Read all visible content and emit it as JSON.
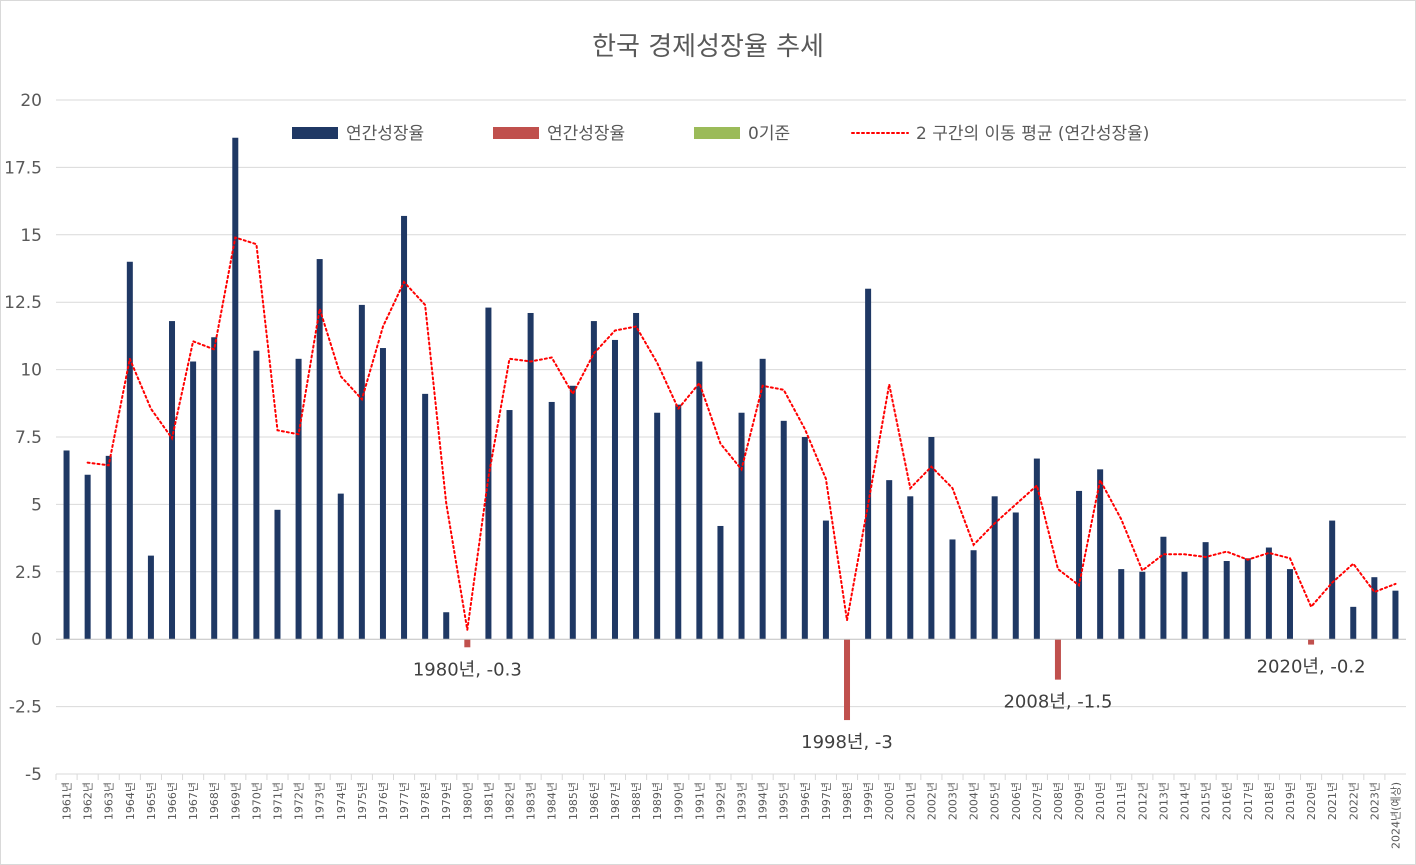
{
  "chart_data": {
    "type": "bar",
    "title": "한국 경제성장율 추세",
    "xlabel": "",
    "ylabel": "",
    "ylim": [
      -5,
      20
    ],
    "yticks": [
      "-5",
      "-2.5",
      "0",
      "2.5",
      "5",
      "7.5",
      "10",
      "12.5",
      "15",
      "17.5",
      "20"
    ],
    "ytick_values": [
      -5,
      -2.5,
      0,
      2.5,
      5,
      7.5,
      10,
      12.5,
      15,
      17.5,
      20
    ],
    "grid": true,
    "legend_position": "top",
    "categories": [
      "1961년",
      "1962년",
      "1963년",
      "1964년",
      "1965년",
      "1966년",
      "1967년",
      "1968년",
      "1969년",
      "1970년",
      "1971년",
      "1972년",
      "1973년",
      "1974년",
      "1975년",
      "1976년",
      "1977년",
      "1978년",
      "1979년",
      "1980년",
      "1981년",
      "1982년",
      "1983년",
      "1984년",
      "1985년",
      "1986년",
      "1987년",
      "1988년",
      "1989년",
      "1990년",
      "1991년",
      "1992년",
      "1993년",
      "1994년",
      "1995년",
      "1996년",
      "1997년",
      "1998년",
      "1999년",
      "2000년",
      "2001년",
      "2002년",
      "2003년",
      "2004년",
      "2005년",
      "2006년",
      "2007년",
      "2008년",
      "2009년",
      "2010년",
      "2011년",
      "2012년",
      "2013년",
      "2014년",
      "2015년",
      "2016년",
      "2017년",
      "2018년",
      "2019년",
      "2020년",
      "2021년",
      "2022년",
      "2023년",
      "2024년(예상)"
    ],
    "values": [
      7.0,
      6.1,
      6.8,
      14.0,
      3.1,
      11.8,
      10.3,
      11.2,
      18.6,
      10.7,
      4.8,
      10.4,
      14.1,
      5.4,
      12.4,
      10.8,
      15.7,
      9.1,
      1.0,
      -0.3,
      12.3,
      8.5,
      12.1,
      8.8,
      9.4,
      11.8,
      11.1,
      12.1,
      8.4,
      8.7,
      10.3,
      4.2,
      8.4,
      10.4,
      8.1,
      7.5,
      4.4,
      -3.0,
      13.0,
      5.9,
      5.3,
      7.5,
      3.7,
      3.3,
      5.3,
      4.7,
      6.7,
      -1.5,
      5.5,
      6.3,
      2.6,
      2.5,
      3.8,
      2.5,
      3.6,
      2.9,
      3.0,
      3.4,
      2.6,
      -0.2,
      4.4,
      1.2,
      2.3,
      1.8
    ],
    "series": [
      {
        "name": "연간성장율",
        "type": "bar",
        "color": "#1f3864",
        "role": "positive"
      },
      {
        "name": "연간성장율",
        "type": "bar",
        "color": "#c0504d",
        "role": "negative"
      },
      {
        "name": "0기준",
        "type": "bar",
        "color": "#9bbb59",
        "role": "zero"
      },
      {
        "name": "2 구간의 이동 평균 (연간성장율)",
        "type": "line",
        "color": "#ff0000",
        "style": "dotted",
        "role": "moving-average",
        "period": 2
      }
    ],
    "annotations": [
      {
        "category": "1980년",
        "label": "1980년, -0.3"
      },
      {
        "category": "1998년",
        "label": "1998년, -3"
      },
      {
        "category": "2008년",
        "label": "2008년, -1.5"
      },
      {
        "category": "2020년",
        "label": "2020년, -0.2"
      }
    ]
  }
}
